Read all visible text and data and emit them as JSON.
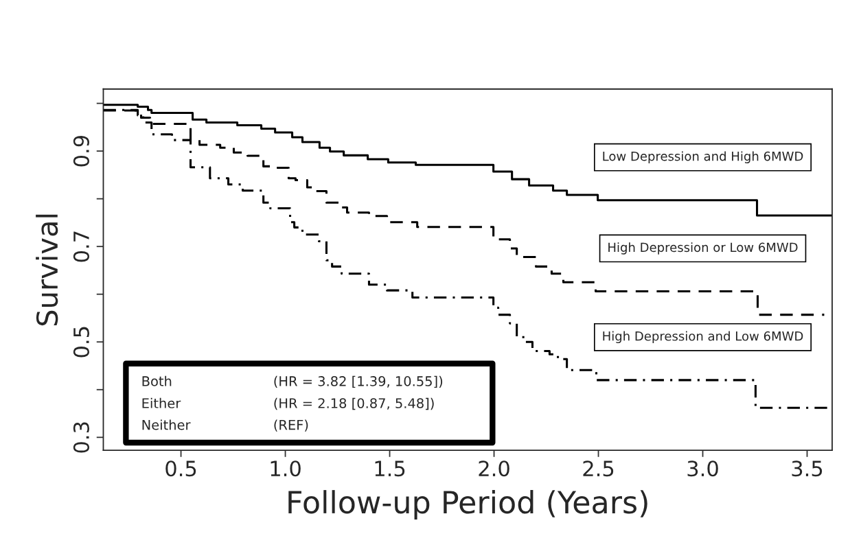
{
  "chart_data": {
    "type": "step",
    "xlabel": "Follow-up Period (Years)",
    "ylabel": "Survival",
    "xlim": [
      0.128,
      3.62
    ],
    "ylim": [
      0.273,
      1.03
    ],
    "xticks": [
      0.5,
      {
        "value": 1,
        "label": "1.0"
      },
      1.5,
      {
        "value": 2,
        "label": "2.0"
      },
      2.5,
      {
        "value": 3,
        "label": "3.0"
      },
      3.5
    ],
    "yticks": [
      0.3,
      {
        "value": 0.4,
        "label": null
      },
      0.5,
      {
        "value": 0.6,
        "label": null
      },
      0.7,
      {
        "value": 0.8,
        "label": null
      },
      0.9,
      {
        "value": 1,
        "label": null
      }
    ],
    "grid": false,
    "legend": false,
    "series": [
      {
        "name": "Low Depression and High 6MWD",
        "color": "#000000",
        "line_style": "solid",
        "x": [
          0.128,
          0.293,
          0.342,
          0.359,
          0.556,
          0.622,
          0.77,
          0.885,
          0.951,
          1.033,
          1.082,
          1.164,
          1.214,
          1.28,
          1.395,
          1.493,
          1.625,
          1.997,
          2.086,
          2.168,
          2.283,
          2.349,
          2.497,
          3.26,
          3.62
        ],
        "values": [
          0.997,
          0.993,
          0.986,
          0.98,
          0.966,
          0.96,
          0.954,
          0.947,
          0.939,
          0.929,
          0.919,
          0.907,
          0.899,
          0.891,
          0.883,
          0.876,
          0.871,
          0.857,
          0.841,
          0.828,
          0.817,
          0.808,
          0.797,
          0.765,
          0.765
        ]
      },
      {
        "name": "High Depression or Low 6MWD",
        "color": "#000000",
        "line_style": "dashed",
        "x": [
          0.128,
          0.283,
          0.309,
          0.352,
          0.546,
          0.589,
          0.688,
          0.753,
          0.819,
          0.895,
          0.934,
          1.016,
          1.049,
          1.105,
          1.148,
          1.197,
          1.257,
          1.296,
          1.401,
          1.487,
          1.632,
          1.997,
          2.076,
          2.109,
          2.201,
          2.276,
          2.332,
          2.487,
          3.263,
          3.582
        ],
        "values": [
          0.985,
          0.98,
          0.97,
          0.957,
          0.923,
          0.913,
          0.907,
          0.897,
          0.89,
          0.868,
          0.865,
          0.843,
          0.839,
          0.824,
          0.816,
          0.792,
          0.782,
          0.771,
          0.764,
          0.751,
          0.741,
          0.715,
          0.696,
          0.678,
          0.658,
          0.643,
          0.625,
          0.606,
          0.557,
          0.557
        ]
      },
      {
        "name": "High Depression and Low 6MWD",
        "color": "#000000",
        "line_style": "dashdot",
        "x": [
          0.128,
          0.293,
          0.319,
          0.359,
          0.457,
          0.546,
          0.639,
          0.727,
          0.796,
          0.895,
          0.928,
          1.023,
          1.043,
          1.082,
          1.161,
          1.197,
          1.224,
          1.27,
          1.401,
          1.487,
          1.609,
          1.997,
          2.02,
          2.076,
          2.109,
          2.151,
          2.184,
          2.266,
          2.306,
          2.349,
          2.49,
          3.253,
          3.62
        ],
        "values": [
          0.986,
          0.975,
          0.96,
          0.935,
          0.923,
          0.866,
          0.843,
          0.83,
          0.817,
          0.792,
          0.78,
          0.751,
          0.74,
          0.725,
          0.711,
          0.671,
          0.658,
          0.643,
          0.62,
          0.608,
          0.593,
          0.572,
          0.557,
          0.539,
          0.51,
          0.5,
          0.481,
          0.474,
          0.464,
          0.441,
          0.42,
          0.362,
          0.362
        ]
      }
    ],
    "annotations": [
      "Both",
      "(HR = 3.82 [1.39, 10.55])",
      "Either",
      "(HR = 2.18 [0.87, 5.48])",
      "Neither",
      "(REF)"
    ]
  }
}
